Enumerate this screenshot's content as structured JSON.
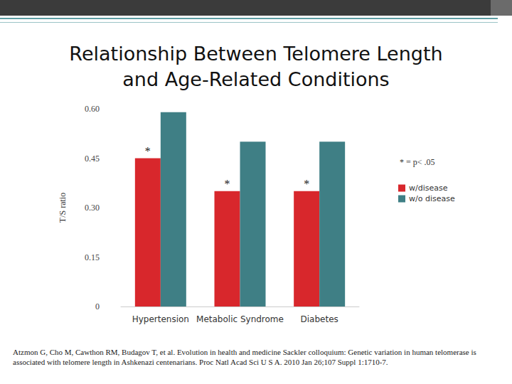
{
  "chart_data": {
    "type": "bar",
    "title": "Relationship Between Telomere Length\nand Age-Related Conditions",
    "y_label": "T/S ratio",
    "categories": [
      "Hypertension",
      "Metabolic Syndrome",
      "Diabetes"
    ],
    "series": [
      {
        "name": "w/disease",
        "color": "#d8272c",
        "values": [
          0.45,
          0.35,
          0.35
        ]
      },
      {
        "name": "w/o disease",
        "color": "#3f7f85",
        "values": [
          0.59,
          0.5,
          0.5
        ]
      }
    ],
    "ylim": [
      0,
      0.6
    ],
    "yticks": [
      0,
      0.15,
      {
        "value": 0.3,
        "label": "0.30"
      },
      0.45,
      {
        "value": 0.6,
        "label": "0.60"
      }
    ],
    "grid": false,
    "legend": "right",
    "annotations": [
      {
        "text": "*",
        "category": "Hypertension",
        "series": "w/disease"
      },
      {
        "text": "*",
        "category": "Metabolic Syndrome",
        "series": "w/disease"
      },
      {
        "text": "*",
        "category": "Diabetes",
        "series": "w/disease"
      },
      {
        "text": "* = p< .05"
      }
    ],
    "source": "Atzmon G, Cho M, Cawthon RM, Budagov T, et al. Evolution in health and medicine Sackler colloquium: Genetic variation in human telomerase is associated with telomere length in Ashkenazi centenarians. Proc Natl Acad Sci U S A. 2010 Jan 26;107 Suppl 1:1710-7."
  }
}
